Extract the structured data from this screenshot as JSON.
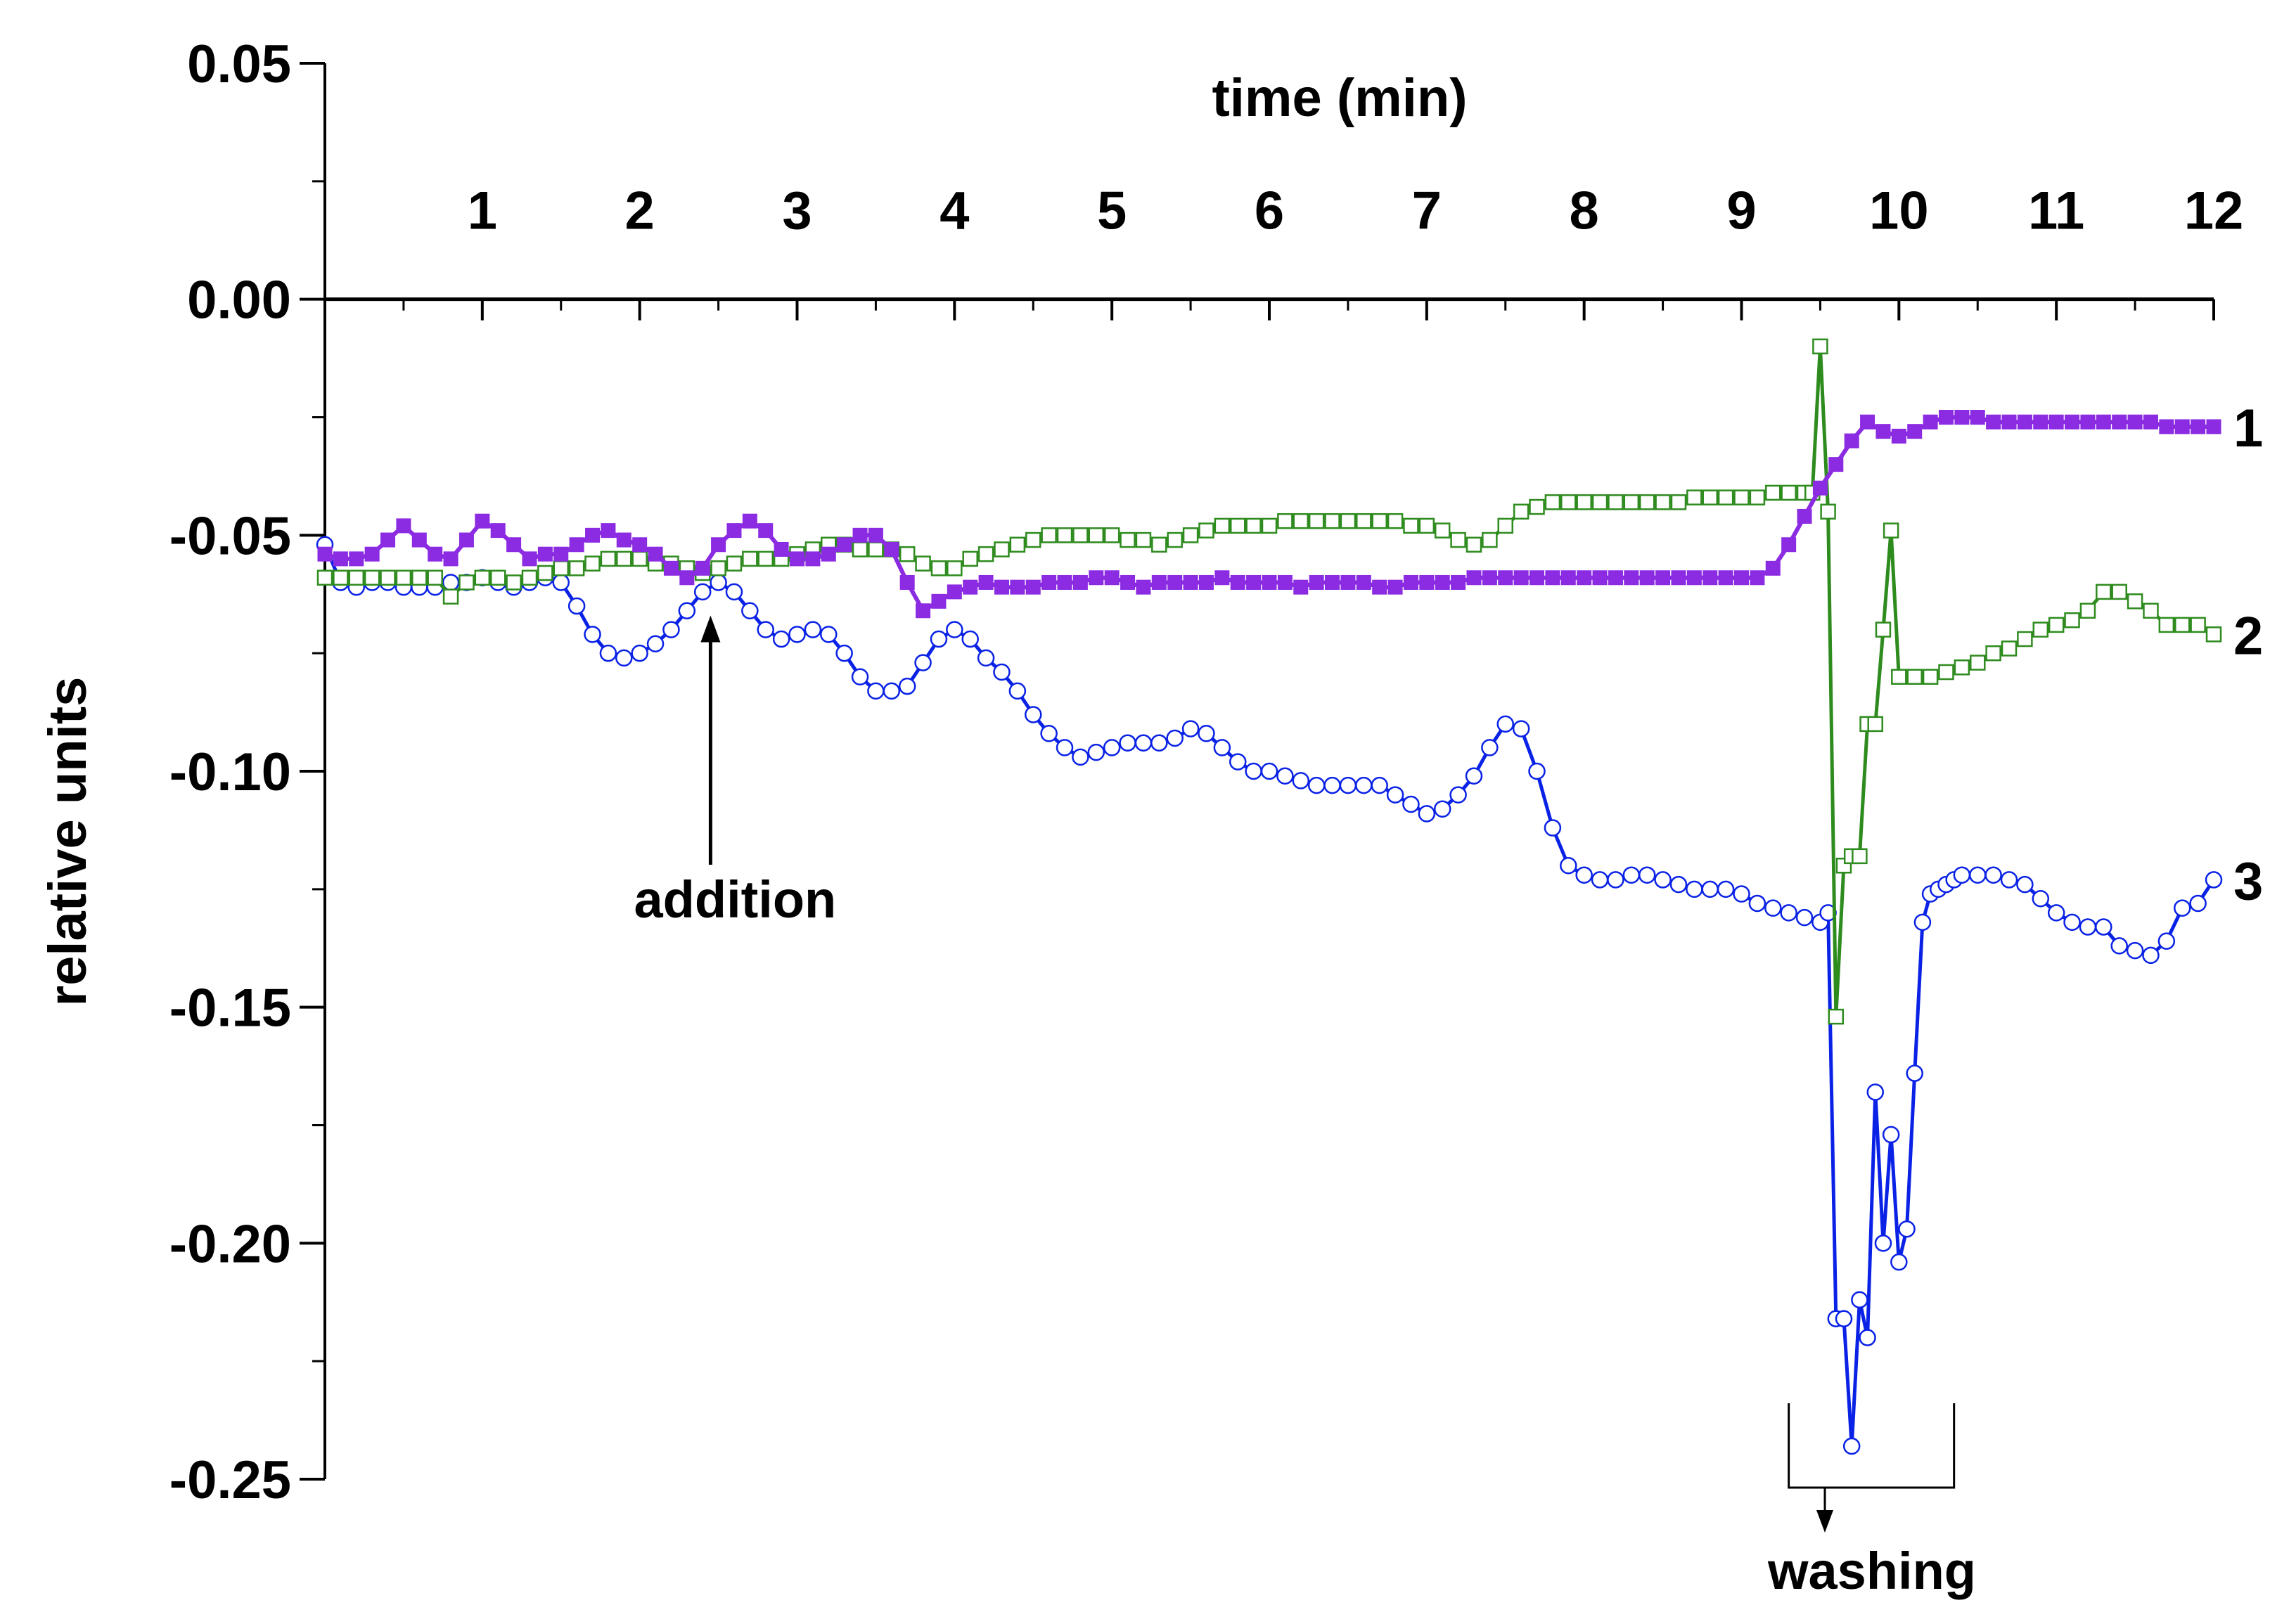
{
  "chart_data": {
    "type": "line",
    "title": "",
    "xlabel": "time (min)",
    "ylabel": "relative units",
    "xlim": [
      0,
      12
    ],
    "ylim": [
      -0.25,
      0.05
    ],
    "x_ticks": [
      1,
      2,
      3,
      4,
      5,
      6,
      7,
      8,
      9,
      10,
      11,
      12
    ],
    "x_tick_labels": [
      "1",
      "2",
      "3",
      "4",
      "5",
      "6",
      "7",
      "8",
      "9",
      "10",
      "11",
      "12"
    ],
    "y_ticks": [
      0.05,
      0.0,
      -0.05,
      -0.1,
      -0.15,
      -0.2,
      -0.25
    ],
    "y_tick_labels": [
      "0.05",
      "0.00",
      "-0.05",
      "-0.10",
      "-0.15",
      "-0.20",
      "-0.25"
    ],
    "x_axis_position": "top",
    "grid": false,
    "legend": "none",
    "annotations": {
      "addition": {
        "label": "addition",
        "x": 2.45,
        "y": -0.067
      },
      "washing": {
        "label": "washing",
        "x_start": 9.3,
        "x_end": 10.35
      }
    },
    "series": [
      {
        "label": "1",
        "color": "#8b2be2",
        "marker": "filled-square",
        "x": [
          0,
          0.1,
          0.2,
          0.3,
          0.4,
          0.5,
          0.6,
          0.7,
          0.8,
          0.9,
          1.0,
          1.1,
          1.2,
          1.3,
          1.4,
          1.5,
          1.6,
          1.7,
          1.8,
          1.9,
          2.0,
          2.1,
          2.2,
          2.3,
          2.4,
          2.5,
          2.6,
          2.7,
          2.8,
          2.9,
          3.0,
          3.1,
          3.2,
          3.3,
          3.4,
          3.5,
          3.6,
          3.7,
          3.8,
          3.9,
          4.0,
          4.1,
          4.2,
          4.3,
          4.4,
          4.5,
          4.6,
          4.7,
          4.8,
          4.9,
          5.0,
          5.1,
          5.2,
          5.3,
          5.4,
          5.5,
          5.6,
          5.7,
          5.8,
          5.9,
          6.0,
          6.1,
          6.2,
          6.3,
          6.4,
          6.5,
          6.6,
          6.7,
          6.8,
          6.9,
          7.0,
          7.1,
          7.2,
          7.3,
          7.4,
          7.5,
          7.6,
          7.7,
          7.8,
          7.9,
          8.0,
          8.1,
          8.2,
          8.3,
          8.4,
          8.5,
          8.6,
          8.7,
          8.8,
          8.9,
          9.0,
          9.1,
          9.2,
          9.3,
          9.4,
          9.5,
          9.6,
          9.7,
          9.8,
          9.9,
          10.0,
          10.1,
          10.2,
          10.3,
          10.4,
          10.5,
          10.6,
          10.7,
          10.8,
          10.9,
          11.0,
          11.1,
          11.2,
          11.3,
          11.4,
          11.5,
          11.6,
          11.7,
          11.8,
          11.9,
          12.0
        ],
        "y": [
          -0.054,
          -0.055,
          -0.055,
          -0.054,
          -0.051,
          -0.048,
          -0.051,
          -0.054,
          -0.055,
          -0.051,
          -0.047,
          -0.049,
          -0.052,
          -0.055,
          -0.054,
          -0.054,
          -0.052,
          -0.05,
          -0.049,
          -0.051,
          -0.052,
          -0.054,
          -0.057,
          -0.059,
          -0.057,
          -0.052,
          -0.049,
          -0.047,
          -0.049,
          -0.053,
          -0.055,
          -0.055,
          -0.054,
          -0.052,
          -0.05,
          -0.05,
          -0.053,
          -0.06,
          -0.066,
          -0.064,
          -0.062,
          -0.061,
          -0.06,
          -0.061,
          -0.061,
          -0.061,
          -0.06,
          -0.06,
          -0.06,
          -0.059,
          -0.059,
          -0.06,
          -0.061,
          -0.06,
          -0.06,
          -0.06,
          -0.06,
          -0.059,
          -0.06,
          -0.06,
          -0.06,
          -0.06,
          -0.061,
          -0.06,
          -0.06,
          -0.06,
          -0.06,
          -0.061,
          -0.061,
          -0.06,
          -0.06,
          -0.06,
          -0.06,
          -0.059,
          -0.059,
          -0.059,
          -0.059,
          -0.059,
          -0.059,
          -0.059,
          -0.059,
          -0.059,
          -0.059,
          -0.059,
          -0.059,
          -0.059,
          -0.059,
          -0.059,
          -0.059,
          -0.059,
          -0.059,
          -0.059,
          -0.057,
          -0.052,
          -0.046,
          -0.04,
          -0.035,
          -0.03,
          -0.026,
          -0.028,
          -0.029,
          -0.028,
          -0.026,
          -0.025,
          -0.025,
          -0.025,
          -0.026,
          -0.026,
          -0.026,
          -0.026,
          -0.026,
          -0.026,
          -0.026,
          -0.026,
          -0.026,
          -0.026,
          -0.026,
          -0.027,
          -0.027,
          -0.027,
          -0.027
        ]
      },
      {
        "label": "2",
        "color": "#2e8b1e",
        "marker": "open-square",
        "x": [
          0,
          0.1,
          0.2,
          0.3,
          0.4,
          0.5,
          0.6,
          0.7,
          0.8,
          0.9,
          1.0,
          1.1,
          1.2,
          1.3,
          1.4,
          1.5,
          1.6,
          1.7,
          1.8,
          1.9,
          2.0,
          2.1,
          2.2,
          2.3,
          2.4,
          2.5,
          2.6,
          2.7,
          2.8,
          2.9,
          3.0,
          3.1,
          3.2,
          3.3,
          3.4,
          3.5,
          3.6,
          3.7,
          3.8,
          3.9,
          4.0,
          4.1,
          4.2,
          4.3,
          4.4,
          4.5,
          4.6,
          4.7,
          4.8,
          4.9,
          5.0,
          5.1,
          5.2,
          5.3,
          5.4,
          5.5,
          5.6,
          5.7,
          5.8,
          5.9,
          6.0,
          6.1,
          6.2,
          6.3,
          6.4,
          6.5,
          6.6,
          6.7,
          6.8,
          6.9,
          7.0,
          7.1,
          7.2,
          7.3,
          7.4,
          7.5,
          7.6,
          7.7,
          7.8,
          7.9,
          8.0,
          8.1,
          8.2,
          8.3,
          8.4,
          8.5,
          8.6,
          8.7,
          8.8,
          8.9,
          9.0,
          9.1,
          9.2,
          9.3,
          9.4,
          9.45,
          9.5,
          9.55,
          9.6,
          9.65,
          9.7,
          9.75,
          9.8,
          9.85,
          9.9,
          9.95,
          10.0,
          10.1,
          10.2,
          10.3,
          10.4,
          10.5,
          10.6,
          10.7,
          10.8,
          10.9,
          11.0,
          11.1,
          11.2,
          11.3,
          11.4,
          11.5,
          11.6,
          11.7,
          11.8,
          11.9,
          12.0
        ],
        "y": [
          -0.059,
          -0.059,
          -0.059,
          -0.059,
          -0.059,
          -0.059,
          -0.059,
          -0.059,
          -0.063,
          -0.06,
          -0.059,
          -0.059,
          -0.06,
          -0.059,
          -0.058,
          -0.057,
          -0.057,
          -0.056,
          -0.055,
          -0.055,
          -0.055,
          -0.056,
          -0.056,
          -0.057,
          -0.058,
          -0.057,
          -0.056,
          -0.055,
          -0.055,
          -0.055,
          -0.054,
          -0.053,
          -0.052,
          -0.052,
          -0.053,
          -0.053,
          -0.053,
          -0.054,
          -0.056,
          -0.057,
          -0.057,
          -0.055,
          -0.054,
          -0.053,
          -0.052,
          -0.051,
          -0.05,
          -0.05,
          -0.05,
          -0.05,
          -0.05,
          -0.051,
          -0.051,
          -0.052,
          -0.051,
          -0.05,
          -0.049,
          -0.048,
          -0.048,
          -0.048,
          -0.048,
          -0.047,
          -0.047,
          -0.047,
          -0.047,
          -0.047,
          -0.047,
          -0.047,
          -0.047,
          -0.048,
          -0.048,
          -0.049,
          -0.051,
          -0.052,
          -0.051,
          -0.048,
          -0.045,
          -0.044,
          -0.043,
          -0.043,
          -0.043,
          -0.043,
          -0.043,
          -0.043,
          -0.043,
          -0.043,
          -0.043,
          -0.042,
          -0.042,
          -0.042,
          -0.042,
          -0.042,
          -0.041,
          -0.041,
          -0.041,
          -0.041,
          -0.01,
          -0.045,
          -0.152,
          -0.12,
          -0.118,
          -0.118,
          -0.09,
          -0.09,
          -0.07,
          -0.049,
          -0.08,
          -0.08,
          -0.08,
          -0.079,
          -0.078,
          -0.077,
          -0.075,
          -0.074,
          -0.072,
          -0.07,
          -0.069,
          -0.068,
          -0.066,
          -0.062,
          -0.062,
          -0.064,
          -0.066,
          -0.069,
          -0.069,
          -0.069,
          -0.071
        ]
      },
      {
        "label": "3",
        "color": "#0a22e6",
        "marker": "open-circle",
        "x": [
          0,
          0.1,
          0.2,
          0.3,
          0.4,
          0.5,
          0.6,
          0.7,
          0.8,
          0.9,
          1.0,
          1.1,
          1.2,
          1.3,
          1.4,
          1.5,
          1.6,
          1.7,
          1.8,
          1.9,
          2.0,
          2.1,
          2.2,
          2.3,
          2.4,
          2.5,
          2.6,
          2.7,
          2.8,
          2.9,
          3.0,
          3.1,
          3.2,
          3.3,
          3.4,
          3.5,
          3.6,
          3.7,
          3.8,
          3.9,
          4.0,
          4.1,
          4.2,
          4.3,
          4.4,
          4.5,
          4.6,
          4.7,
          4.8,
          4.9,
          5.0,
          5.1,
          5.2,
          5.3,
          5.4,
          5.5,
          5.6,
          5.7,
          5.8,
          5.9,
          6.0,
          6.1,
          6.2,
          6.3,
          6.4,
          6.5,
          6.6,
          6.7,
          6.8,
          6.9,
          7.0,
          7.1,
          7.2,
          7.3,
          7.4,
          7.5,
          7.6,
          7.7,
          7.8,
          7.9,
          8.0,
          8.1,
          8.2,
          8.3,
          8.4,
          8.5,
          8.6,
          8.7,
          8.8,
          8.9,
          9.0,
          9.1,
          9.2,
          9.3,
          9.4,
          9.5,
          9.55,
          9.6,
          9.65,
          9.7,
          9.75,
          9.8,
          9.85,
          9.9,
          9.95,
          10.0,
          10.05,
          10.1,
          10.15,
          10.2,
          10.25,
          10.3,
          10.35,
          10.4,
          10.5,
          10.6,
          10.7,
          10.8,
          10.9,
          11.0,
          11.1,
          11.2,
          11.3,
          11.4,
          11.5,
          11.6,
          11.7,
          11.8,
          11.9,
          12.0
        ],
        "y": [
          -0.052,
          -0.06,
          -0.061,
          -0.06,
          -0.06,
          -0.061,
          -0.061,
          -0.061,
          -0.06,
          -0.06,
          -0.059,
          -0.06,
          -0.061,
          -0.06,
          -0.059,
          -0.06,
          -0.065,
          -0.071,
          -0.075,
          -0.076,
          -0.075,
          -0.073,
          -0.07,
          -0.066,
          -0.062,
          -0.06,
          -0.062,
          -0.066,
          -0.07,
          -0.072,
          -0.071,
          -0.07,
          -0.071,
          -0.075,
          -0.08,
          -0.083,
          -0.083,
          -0.082,
          -0.077,
          -0.072,
          -0.07,
          -0.072,
          -0.076,
          -0.079,
          -0.083,
          -0.088,
          -0.092,
          -0.095,
          -0.097,
          -0.096,
          -0.095,
          -0.094,
          -0.094,
          -0.094,
          -0.093,
          -0.091,
          -0.092,
          -0.095,
          -0.098,
          -0.1,
          -0.1,
          -0.101,
          -0.102,
          -0.103,
          -0.103,
          -0.103,
          -0.103,
          -0.103,
          -0.105,
          -0.107,
          -0.109,
          -0.108,
          -0.105,
          -0.101,
          -0.095,
          -0.09,
          -0.091,
          -0.1,
          -0.112,
          -0.12,
          -0.122,
          -0.123,
          -0.123,
          -0.122,
          -0.122,
          -0.123,
          -0.124,
          -0.125,
          -0.125,
          -0.125,
          -0.126,
          -0.128,
          -0.129,
          -0.13,
          -0.131,
          -0.132,
          -0.13,
          -0.216,
          -0.216,
          -0.243,
          -0.212,
          -0.22,
          -0.168,
          -0.2,
          -0.177,
          -0.204,
          -0.197,
          -0.164,
          -0.132,
          -0.126,
          -0.125,
          -0.124,
          -0.123,
          -0.122,
          -0.122,
          -0.122,
          -0.123,
          -0.124,
          -0.127,
          -0.13,
          -0.132,
          -0.133,
          -0.133,
          -0.137,
          -0.138,
          -0.139,
          -0.136,
          -0.129,
          -0.128,
          -0.123
        ]
      }
    ]
  }
}
